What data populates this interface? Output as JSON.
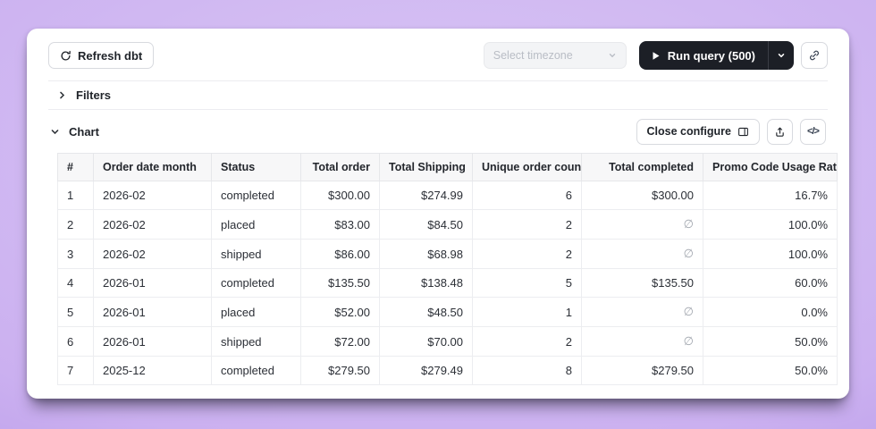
{
  "toolbar": {
    "refresh_label": "Refresh dbt",
    "timezone_placeholder": "Select timezone",
    "run_query_label": "Run query (500)"
  },
  "sections": {
    "filters_label": "Filters",
    "chart_label": "Chart",
    "close_configure_label": "Close configure",
    "code_button_label": "</>"
  },
  "table": {
    "headers": [
      "#",
      "Order date month",
      "Status",
      "Total order",
      "Total Shipping",
      "Unique order count",
      "Total completed",
      "Promo Code Usage Rate"
    ],
    "numeric_columns_from_index": 3,
    "null_symbol": "∅",
    "rows": [
      [
        "1",
        "2026-02",
        "completed",
        "$300.00",
        "$274.99",
        "6",
        "$300.00",
        "16.7%"
      ],
      [
        "2",
        "2026-02",
        "placed",
        "$83.00",
        "$84.50",
        "2",
        "∅",
        "100.0%"
      ],
      [
        "3",
        "2026-02",
        "shipped",
        "$86.00",
        "$68.98",
        "2",
        "∅",
        "100.0%"
      ],
      [
        "4",
        "2026-01",
        "completed",
        "$135.50",
        "$138.48",
        "5",
        "$135.50",
        "60.0%"
      ],
      [
        "5",
        "2026-01",
        "placed",
        "$52.00",
        "$48.50",
        "1",
        "∅",
        "0.0%"
      ],
      [
        "6",
        "2026-01",
        "shipped",
        "$72.00",
        "$70.00",
        "2",
        "∅",
        "50.0%"
      ],
      [
        "7",
        "2025-12",
        "completed",
        "$279.50",
        "$279.49",
        "8",
        "$279.50",
        "50.0%"
      ]
    ]
  },
  "colors": {
    "run_button_bg": "#1c1f26",
    "card_bg": "#ffffff",
    "table_header_bg": "#f7f7f8",
    "border": "#e6e7ea",
    "null_text": "#a2a7af",
    "background_purple": "#cbb0f0"
  }
}
